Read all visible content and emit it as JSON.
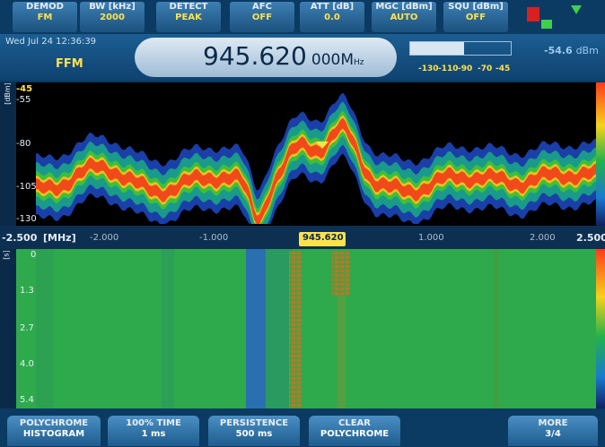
{
  "top_softkeys": [
    {
      "label": "DEMOD",
      "value": "FM"
    },
    {
      "label": "BW [kHz]",
      "value": "2000"
    },
    {
      "label": "DETECT",
      "value": "PEAK"
    },
    {
      "label": "AFC",
      "value": "OFF"
    },
    {
      "label": "ATT [dB]",
      "value": "0.0"
    },
    {
      "label": "MGC [dBm]",
      "value": "AUTO"
    },
    {
      "label": "SQU [dBm]",
      "value": "OFF"
    }
  ],
  "status": {
    "datetime": "Wed Jul 24  12:36:39",
    "mode": "FFM",
    "frequency_main": "945.620",
    "frequency_fine": "000",
    "frequency_unit": "M",
    "frequency_unit_sub": "Hz",
    "level": "-54.6",
    "level_unit": "dBm",
    "level_scale": [
      "-130",
      "-110",
      "-90",
      "-70",
      "-45"
    ]
  },
  "spectrum": {
    "y_unit": "[dBm]",
    "y_labels": [
      "-45",
      "-55",
      "-80",
      "-105",
      "-130"
    ]
  },
  "freq_axis": {
    "start": "-2.500",
    "unit": "[MHz]",
    "labels": [
      "-2.000",
      "-1.000",
      "1.000",
      "2.000"
    ],
    "center": "945.620",
    "end": "2.500"
  },
  "waterfall": {
    "y_unit": "[s]",
    "y_labels": [
      "0",
      "1.3",
      "2.7",
      "4.0",
      "5.4"
    ]
  },
  "bottom_softkeys": [
    {
      "label": "POLYCHROME",
      "value": "HISTOGRAM"
    },
    {
      "label": "100% TIME",
      "value": "1 ms"
    },
    {
      "label": "PERSISTENCE",
      "value": "500 ms"
    },
    {
      "label": "CLEAR",
      "value": "POLYCHROME"
    },
    {
      "label": "MORE",
      "value": "3/4"
    }
  ]
}
